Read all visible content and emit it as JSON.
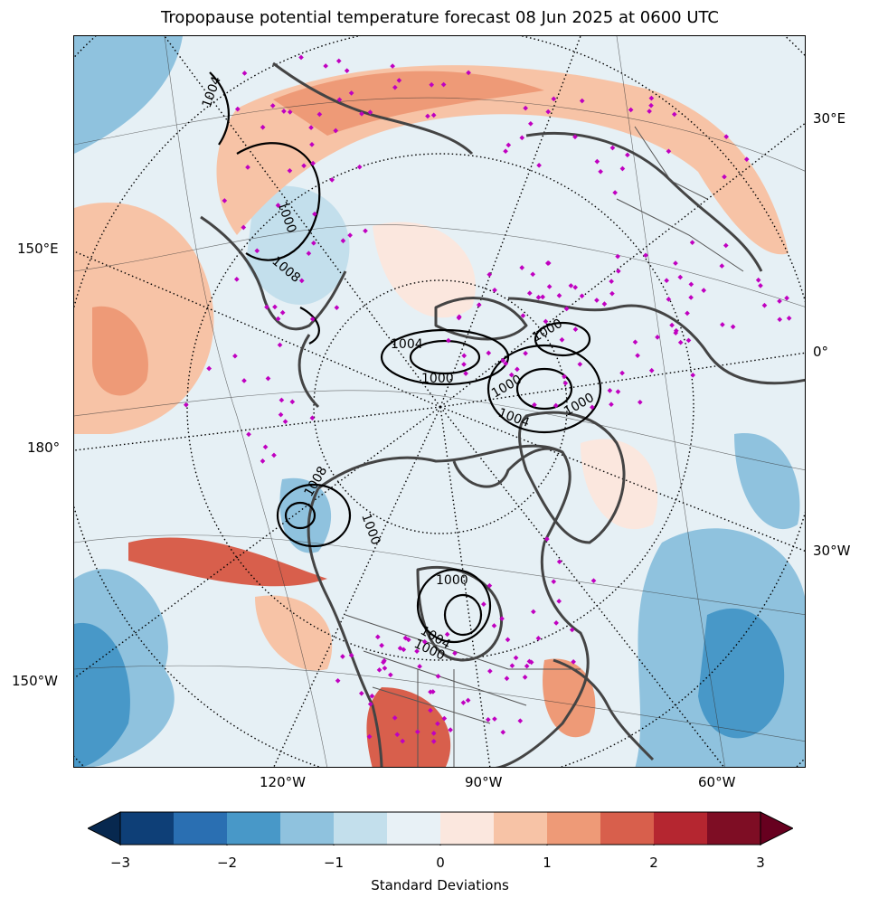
{
  "title": "Tropopause potential temperature forecast 08 Jun 2025 at 0600 UTC",
  "map": {
    "projection": "north-polar-stereographic",
    "longitude_labels": {
      "right": [
        "30°E",
        "0°",
        "30°W"
      ],
      "left": [
        "150°E",
        "180°",
        "150°W"
      ],
      "bottom": [
        "120°W",
        "90°W",
        "60°W"
      ]
    },
    "contour_labels": [
      "1004",
      "1000",
      "1008",
      "1004",
      "1000",
      "1000",
      "1000",
      "1004",
      "1000",
      "1008",
      "1000",
      "1000",
      "1004",
      "1000"
    ],
    "marker_color": "#c000c0",
    "coastline_color": "#444444"
  },
  "colorbar": {
    "label": "Standard Deviations",
    "ticks": [
      "−3",
      "−2",
      "−1",
      "0",
      "1",
      "2",
      "3"
    ],
    "bins": [
      "#0e3f77",
      "#2a6fb2",
      "#4898c8",
      "#8fc2de",
      "#c3dfec",
      "#e8f1f6",
      "#fbe7de",
      "#f7c3a6",
      "#ee9a77",
      "#d85f4c",
      "#b52630",
      "#7e0d24"
    ],
    "under_color": "#07284f",
    "over_color": "#67001f"
  }
}
